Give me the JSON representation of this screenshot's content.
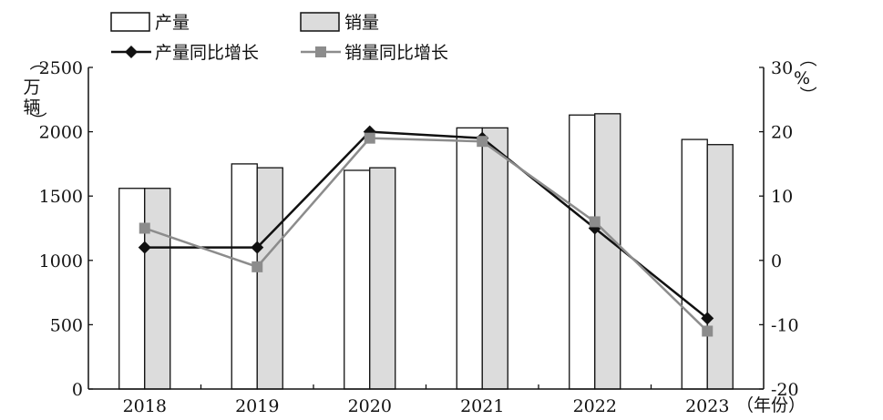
{
  "chart_data": {
    "type": "bar",
    "categories": [
      "2018",
      "2019",
      "2020",
      "2021",
      "2022",
      "2023"
    ],
    "x_unit": "（年份）",
    "left_axis": {
      "unit": "万辆",
      "ylim": [
        0,
        2500
      ],
      "ticks": [
        0,
        500,
        1000,
        1500,
        2000,
        2500
      ]
    },
    "right_axis": {
      "unit": "%",
      "ylim": [
        -20,
        30
      ],
      "ticks": [
        -20,
        -10,
        0,
        10,
        20,
        30
      ]
    },
    "series": [
      {
        "name": "产量",
        "kind": "bar",
        "axis": "left",
        "color": "#ffffff",
        "values": [
          1560,
          1750,
          1700,
          2030,
          2130,
          1940
        ]
      },
      {
        "name": "销量",
        "kind": "bar",
        "axis": "left",
        "color": "#dcdcdc",
        "values": [
          1560,
          1720,
          1720,
          2030,
          2140,
          1900
        ]
      },
      {
        "name": "产量同比增长",
        "kind": "line",
        "marker": "diamond",
        "axis": "right",
        "color": "#111111",
        "values": [
          2,
          2,
          20,
          19,
          5,
          -9
        ]
      },
      {
        "name": "销量同比增长",
        "kind": "line",
        "marker": "square",
        "axis": "right",
        "color": "#8c8c8c",
        "values": [
          5,
          -1,
          19,
          18.5,
          6,
          -11
        ]
      }
    ],
    "grid": false,
    "legend_position": "top"
  }
}
